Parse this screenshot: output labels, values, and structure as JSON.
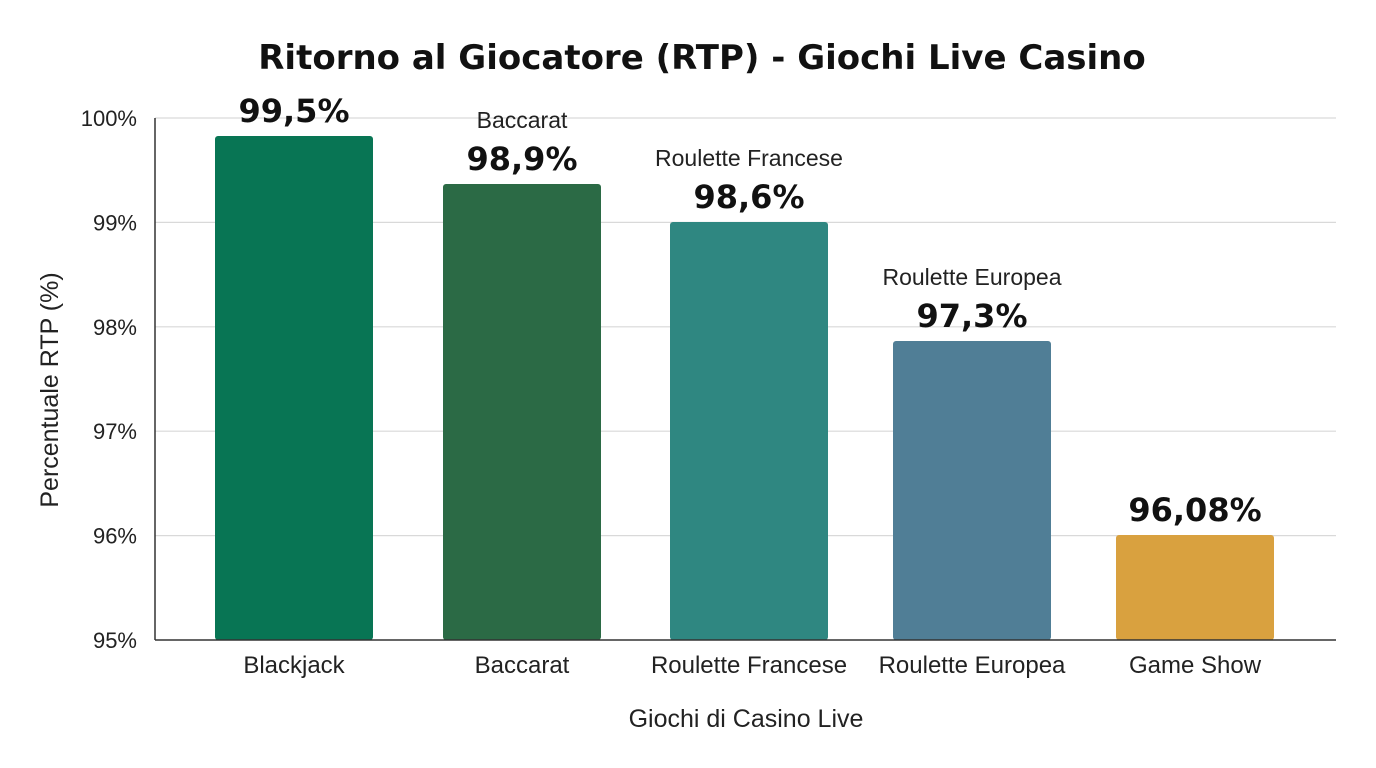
{
  "chart_data": {
    "type": "bar",
    "title": "Ritorno al Giocatore (RTP) - Giochi Live Casino",
    "xlabel": "Giochi di Casino Live",
    "ylabel": "Percentuale RTP (%)",
    "ylim": [
      95,
      100
    ],
    "yticks": [
      95,
      96,
      97,
      98,
      99,
      100
    ],
    "ytick_labels": [
      "95%",
      "96%",
      "97%",
      "98%",
      "99%",
      "100%"
    ],
    "grid": true,
    "categories": [
      "Blackjack",
      "Baccarat",
      "Roulette Francese",
      "Roulette Europea",
      "Game Show"
    ],
    "values": [
      99.5,
      98.9,
      98.6,
      97.3,
      96.08
    ],
    "value_labels": [
      "99,5%",
      "98,9%",
      "98,6%",
      "97,3%",
      "96,08%"
    ],
    "bar_name_labels": [
      "",
      "Baccarat",
      "Roulette Francese",
      "Roulette Europea",
      ""
    ],
    "colors": [
      "#087554",
      "#2b6a45",
      "#2f8781",
      "#507e96",
      "#d9a13f"
    ]
  }
}
